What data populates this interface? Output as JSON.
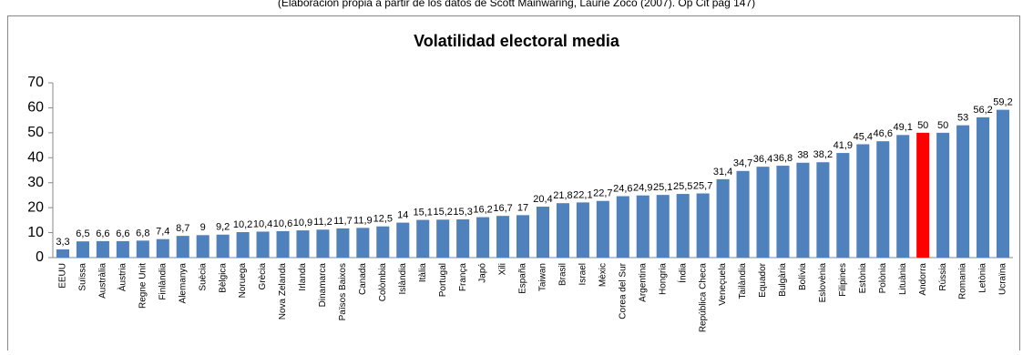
{
  "caption": "(Elaboración propia a partir de los datos de Scott Mainwaring, Laurie Zoco (2007). Op Cit pag 147)",
  "chart_data": {
    "type": "bar",
    "title": "Volatilidad electoral media",
    "categories": [
      "EEUU",
      "Suïssa",
      "Austràlia",
      "Àustria",
      "Regne Unit",
      "Finlàndia",
      "Alemanya",
      "Suècia",
      "Bèlgica",
      "Noruega",
      "Grècia",
      "Nova Zelanda",
      "Irlanda",
      "Dinamarca",
      "Països Baixos",
      "Canada",
      "Colòmbia",
      "Islàndia",
      "Itàlia",
      "Portugal",
      "França",
      "Japó",
      "Xili",
      "España",
      "Taiwan",
      "Brasil",
      "Israel",
      "Mèxic",
      "Corea del Sur",
      "Argentina",
      "Hongria",
      "Índia",
      "República Checa",
      "Veneçuela",
      "Tailàndia",
      "Equador",
      "Bulgària",
      "Bolívia",
      "Eslovènia",
      "Filipines",
      "Estònia",
      "Polònia",
      "Lituània",
      "Andorra",
      "Rússia",
      "Romania",
      "Letònia",
      "Ucraïna"
    ],
    "values": [
      3.3,
      6.5,
      6.6,
      6.6,
      6.8,
      7.4,
      8.7,
      9,
      9.2,
      10.2,
      10.4,
      10.6,
      10.9,
      11.2,
      11.7,
      11.9,
      12.5,
      14,
      15.1,
      15.2,
      15.3,
      16.2,
      16.7,
      17,
      20.4,
      21.8,
      22.1,
      22.7,
      24.6,
      24.9,
      25.1,
      25.5,
      25.7,
      31.4,
      34.7,
      36.4,
      36.8,
      38,
      38.2,
      41.9,
      45.4,
      46.6,
      49.1,
      50,
      50,
      53,
      56.2,
      59.2
    ],
    "value_labels": [
      "3,3",
      "6,5",
      "6,6",
      "6,6",
      "6,8",
      "7,4",
      "8,7",
      "9",
      "9,2",
      "10,2",
      "10,4",
      "10,6",
      "10,9",
      "11,2",
      "11,7",
      "11,9",
      "12,5",
      "14",
      "15,1",
      "15,2",
      "15,3",
      "16,2",
      "16,7",
      "17",
      "20,4",
      "21,8",
      "22,1",
      "22,7",
      "24,6",
      "24,9",
      "25,1",
      "25,5",
      "25,7",
      "31,4",
      "34,7",
      "36,4",
      "36,8",
      "38",
      "38,2",
      "41,9",
      "45,4",
      "46,6",
      "49,1",
      "50",
      "50",
      "53",
      "56,2",
      "59,2"
    ],
    "colors": [
      "#4f81bd",
      "#4f81bd",
      "#4f81bd",
      "#4f81bd",
      "#4f81bd",
      "#4f81bd",
      "#4f81bd",
      "#4f81bd",
      "#4f81bd",
      "#4f81bd",
      "#4f81bd",
      "#4f81bd",
      "#4f81bd",
      "#4f81bd",
      "#4f81bd",
      "#4f81bd",
      "#4f81bd",
      "#4f81bd",
      "#4f81bd",
      "#4f81bd",
      "#4f81bd",
      "#4f81bd",
      "#4f81bd",
      "#4f81bd",
      "#4f81bd",
      "#4f81bd",
      "#4f81bd",
      "#4f81bd",
      "#4f81bd",
      "#4f81bd",
      "#4f81bd",
      "#4f81bd",
      "#4f81bd",
      "#4f81bd",
      "#4f81bd",
      "#4f81bd",
      "#4f81bd",
      "#4f81bd",
      "#4f81bd",
      "#4f81bd",
      "#4f81bd",
      "#4f81bd",
      "#4f81bd",
      "#ff0000",
      "#4f81bd",
      "#4f81bd",
      "#4f81bd",
      "#4f81bd"
    ],
    "ylim": [
      0,
      70
    ],
    "yticks": [
      0,
      10,
      20,
      30,
      40,
      50,
      60,
      70
    ],
    "grid": false
  }
}
